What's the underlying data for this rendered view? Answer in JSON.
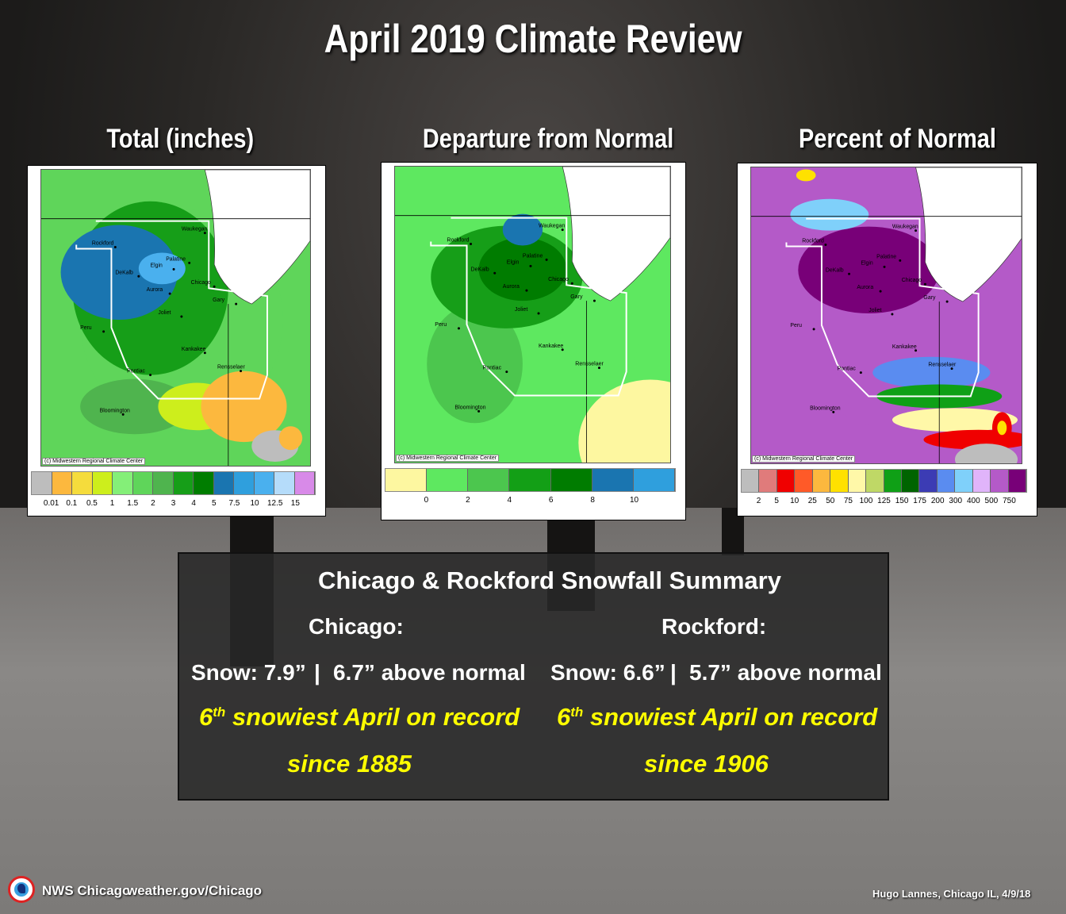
{
  "title": "April 2019 Climate Review",
  "panels": [
    {
      "title": "Total (inches)",
      "legend_colors": [
        "#bdbdbd",
        "#fcb83e",
        "#f5dc3c",
        "#cdee1c",
        "#84ef78",
        "#5fd55a",
        "#4fb44e",
        "#169e18",
        "#007d00",
        "#1a75b0",
        "#2f9fdd",
        "#4ab0ee",
        "#b5dcfa",
        "#d88ae8"
      ],
      "ticks": [
        "0.01",
        "0.1",
        "0.5",
        "1",
        "1.5",
        "2",
        "3",
        "4",
        "5",
        "7.5",
        "10",
        "12.5",
        "15"
      ]
    },
    {
      "title": "Departure from Normal",
      "legend_colors": [
        "#fdf7a0",
        "#5ee860",
        "#4cc64e",
        "#139f16",
        "#007c00",
        "#1a75b0",
        "#2f9fdd"
      ],
      "ticks": [
        "0",
        "2",
        "4",
        "6",
        "8",
        "10"
      ]
    },
    {
      "title": "Percent of Normal",
      "legend_colors": [
        "#bdbdbd",
        "#e07b7b",
        "#f00000",
        "#ff5a28",
        "#fcb83e",
        "#ffe100",
        "#fff8a8",
        "#bfd866",
        "#0fa016",
        "#006400",
        "#3c3cb4",
        "#5a8cf0",
        "#7fd0fa",
        "#e0b4fa",
        "#b45ac8",
        "#780078"
      ],
      "ticks": [
        "2",
        "5",
        "10",
        "25",
        "50",
        "75",
        "100",
        "125",
        "150",
        "175",
        "200",
        "300",
        "400",
        "500",
        "750"
      ]
    }
  ],
  "map_cities": [
    "Rockford",
    "Waukegan",
    "Palatine",
    "Elgin",
    "DeKalb",
    "Chicago",
    "Aurora",
    "Joliet",
    "Gary",
    "Peru",
    "Kankakee",
    "Rensselaer",
    "Pontiac",
    "Bloomington"
  ],
  "map_credit": "(c) Midwestern Regional Climate Center",
  "summary": {
    "heading": "Chicago & Rockford Snowfall Summary",
    "chicago": {
      "label": "Chicago:",
      "snow": "Snow:  7.9”",
      "sep": "|",
      "above": "6.7” above normal",
      "rank_num": "6",
      "rank_sup": "th",
      "rank_text": " snowiest April on record",
      "since": "since 1885"
    },
    "rockford": {
      "label": "Rockford:",
      "snow": "Snow: 6.6”",
      "sep": "|",
      "above": "5.7” above normal",
      "rank_num": "6",
      "rank_sup": "th",
      "rank_text": " snowiest April on record",
      "since": "since 1906"
    }
  },
  "footer": {
    "office": "NWS Chicago",
    "url": "weather.gov/Chicago",
    "author": "Hugo Lannes, Chicago IL,  4/9/18"
  }
}
